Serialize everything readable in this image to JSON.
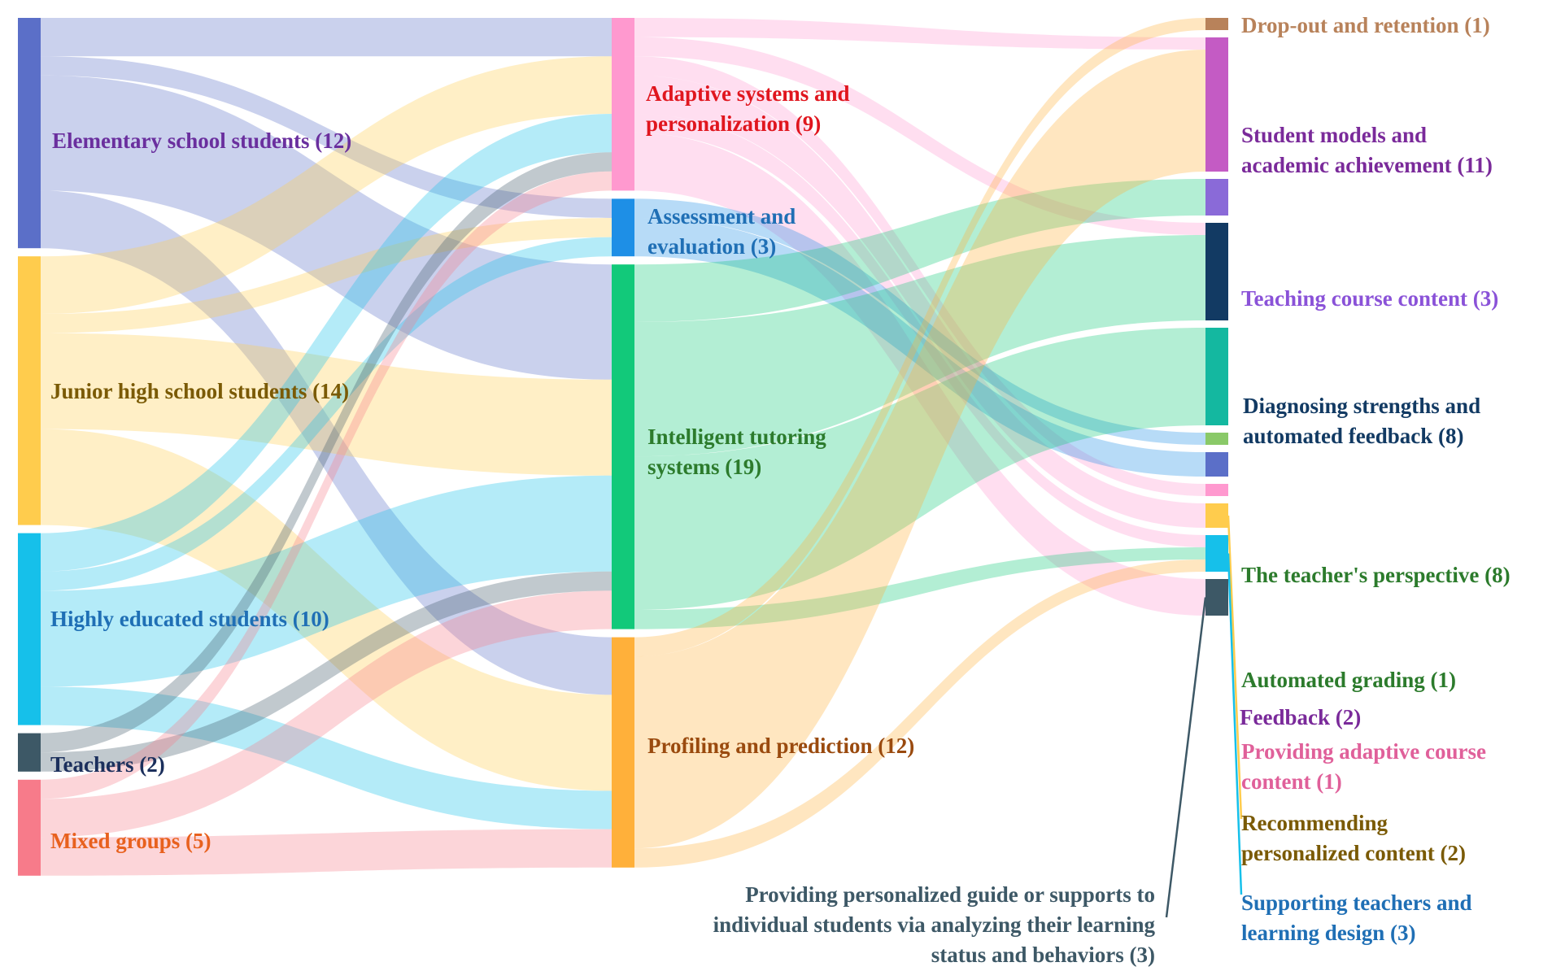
{
  "diagram": {
    "type": "sankey",
    "nodes": [
      {
        "id": "elem",
        "column": 0,
        "value": 12,
        "color": "#5b6fc8",
        "label_color": "#6a2f9e",
        "lines": [
          "Elementary school students (12)"
        ]
      },
      {
        "id": "junior",
        "column": 0,
        "value": 14,
        "color": "#ffcc4d",
        "label_color": "#7a5a05",
        "lines": [
          "Junior high school students (14)"
        ]
      },
      {
        "id": "highly",
        "column": 0,
        "value": 10,
        "color": "#16c0ea",
        "label_color": "#1f6fb5",
        "lines": [
          "Highly educated students (10)"
        ]
      },
      {
        "id": "teachers",
        "column": 0,
        "value": 2,
        "color": "#3d5866",
        "label_color": "#1b2f5c",
        "lines": [
          "Teachers (2)"
        ]
      },
      {
        "id": "mixed",
        "column": 0,
        "value": 5,
        "color": "#f77b8a",
        "label_color": "#e8611e",
        "lines": [
          "Mixed groups (5)"
        ]
      },
      {
        "id": "adaptive",
        "column": 1,
        "value": 9,
        "color": "#ff99cf",
        "label_color": "#e0161e",
        "lines": [
          "Adaptive systems and",
          "personalization (9)"
        ]
      },
      {
        "id": "assess",
        "column": 1,
        "value": 3,
        "color": "#1e8fe6",
        "label_color": "#1f6fb5",
        "lines": [
          "Assessment and",
          "evaluation (3)"
        ]
      },
      {
        "id": "its",
        "column": 1,
        "value": 19,
        "color": "#12c97a",
        "label_color": "#2c7b2c",
        "lines": [
          "Intelligent tutoring",
          "systems (19)"
        ]
      },
      {
        "id": "profiling",
        "column": 1,
        "value": 12,
        "color": "#ffb03a",
        "label_color": "#9a4a0e",
        "lines": [
          "Profiling and prediction (12)"
        ]
      },
      {
        "id": "dropout",
        "column": 2,
        "value": 1,
        "color": "#b8825a",
        "label_color": "#b8825a",
        "lines": [
          "Drop-out and retention (1)"
        ]
      },
      {
        "id": "studentmodels",
        "column": 2,
        "value": 11,
        "color": "#c45bc4",
        "label_color": "#7a2a9a",
        "lines": [
          "Student models and",
          "academic achievement (11)"
        ]
      },
      {
        "id": "teaching",
        "column": 2,
        "value": 3,
        "color": "#8a6ad8",
        "label_color": "#8a52d8",
        "lines": [
          "Teaching course content (3)"
        ]
      },
      {
        "id": "diagnosing",
        "column": 2,
        "value": 8,
        "color": "#123a63",
        "label_color": "#123a63",
        "lines": [
          "Diagnosing strengths and",
          "automated feedback (8)"
        ]
      },
      {
        "id": "teacherpersp",
        "column": 2,
        "value": 8,
        "color": "#14b8a0",
        "label_color": "#2c7b2c",
        "lines": [
          "The teacher's perspective (8)"
        ]
      },
      {
        "id": "grading",
        "column": 2,
        "value": 1,
        "color": "#8ac968",
        "label_color": "#2c7b2c",
        "lines": [
          "Automated grading (1)"
        ]
      },
      {
        "id": "feedback",
        "column": 2,
        "value": 2,
        "color": "#5b6fc8",
        "label_color": "#7a2a9a",
        "lines": [
          "Feedback (2)"
        ]
      },
      {
        "id": "provadaptive",
        "column": 2,
        "value": 1,
        "color": "#ff99cf",
        "label_color": "#e0609a",
        "lines": [
          "Providing adaptive course",
          "content (1)"
        ]
      },
      {
        "id": "recommending",
        "column": 2,
        "value": 2,
        "color": "#ffcc4d",
        "label_color": "#7a5a05",
        "lines": [
          "Recommending",
          "personalized content (2)"
        ]
      },
      {
        "id": "supporting",
        "column": 2,
        "value": 3,
        "color": "#16c0ea",
        "label_color": "#1f6fb5",
        "lines": [
          "Supporting teachers and",
          "learning design (3)"
        ]
      },
      {
        "id": "guide",
        "column": 2,
        "value": 3,
        "color": "#3d5866",
        "label_color": "#3d5866",
        "lines": [
          "Providing personalized guide or supports to",
          "individual students via analyzing their learning",
          "status and behaviors (3)"
        ]
      }
    ],
    "links": [
      {
        "source": "elem",
        "target": "adaptive",
        "value": 2
      },
      {
        "source": "elem",
        "target": "assess",
        "value": 1
      },
      {
        "source": "elem",
        "target": "its",
        "value": 6
      },
      {
        "source": "elem",
        "target": "profiling",
        "value": 3
      },
      {
        "source": "junior",
        "target": "adaptive",
        "value": 3
      },
      {
        "source": "junior",
        "target": "assess",
        "value": 1
      },
      {
        "source": "junior",
        "target": "its",
        "value": 5
      },
      {
        "source": "junior",
        "target": "profiling",
        "value": 5
      },
      {
        "source": "highly",
        "target": "adaptive",
        "value": 2
      },
      {
        "source": "highly",
        "target": "assess",
        "value": 1
      },
      {
        "source": "highly",
        "target": "its",
        "value": 5
      },
      {
        "source": "highly",
        "target": "profiling",
        "value": 2
      },
      {
        "source": "teachers",
        "target": "adaptive",
        "value": 1
      },
      {
        "source": "teachers",
        "target": "its",
        "value": 1
      },
      {
        "source": "mixed",
        "target": "adaptive",
        "value": 1
      },
      {
        "source": "mixed",
        "target": "its",
        "value": 2
      },
      {
        "source": "mixed",
        "target": "profiling",
        "value": 2
      },
      {
        "source": "adaptive",
        "target": "studentmodels",
        "value": 1
      },
      {
        "source": "adaptive",
        "target": "diagnosing",
        "value": 1
      },
      {
        "source": "adaptive",
        "target": "provadaptive",
        "value": 1
      },
      {
        "source": "adaptive",
        "target": "recommending",
        "value": 2
      },
      {
        "source": "adaptive",
        "target": "supporting",
        "value": 1
      },
      {
        "source": "adaptive",
        "target": "guide",
        "value": 3
      },
      {
        "source": "assess",
        "target": "grading",
        "value": 1
      },
      {
        "source": "assess",
        "target": "feedback",
        "value": 2
      },
      {
        "source": "its",
        "target": "teaching",
        "value": 3
      },
      {
        "source": "its",
        "target": "diagnosing",
        "value": 7
      },
      {
        "source": "its",
        "target": "teacherpersp",
        "value": 8
      },
      {
        "source": "its",
        "target": "supporting",
        "value": 1
      },
      {
        "source": "profiling",
        "target": "dropout",
        "value": 1
      },
      {
        "source": "profiling",
        "target": "studentmodels",
        "value": 10
      },
      {
        "source": "profiling",
        "target": "supporting",
        "value": 1
      }
    ]
  }
}
